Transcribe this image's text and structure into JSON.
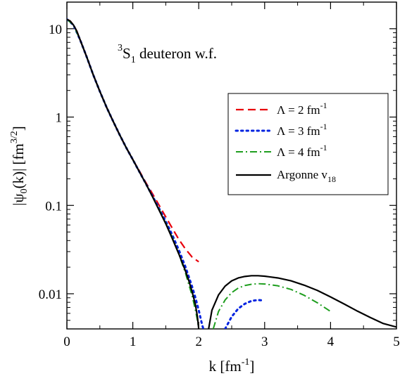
{
  "chart_data": {
    "type": "line",
    "title": "",
    "annotation": {
      "sup": "3",
      "main": "S",
      "sub": "1",
      "rest": " deuteron w.f."
    },
    "xlabel": {
      "main": "k [fm",
      "sup": "-1",
      "end": "]"
    },
    "ylabel": {
      "pre": "|ψ",
      "sub": "0",
      "mid": "(k)| [fm",
      "sup": "3/2",
      "end": "]"
    },
    "xlim": [
      0,
      5
    ],
    "ylim": [
      0.004,
      20
    ],
    "yscale": "log",
    "xticks": [
      0,
      1,
      2,
      3,
      4,
      5
    ],
    "xtick_labels": [
      "0",
      "1",
      "2",
      "3",
      "4",
      "5"
    ],
    "yticks": [
      0.01,
      0.1,
      1,
      10
    ],
    "ytick_labels": [
      "0.01",
      "0.1",
      "1",
      "10"
    ],
    "grid": false,
    "legend_position": "right",
    "legend": [
      {
        "main": "Λ = 2 fm",
        "sup": "-1",
        "sub": ""
      },
      {
        "main": "Λ = 3 fm",
        "sup": "-1",
        "sub": ""
      },
      {
        "main": "Λ = 4 fm",
        "sup": "-1",
        "sub": ""
      },
      {
        "main": "Argonne v",
        "sup": "",
        "sub": "18"
      }
    ],
    "series": [
      {
        "name": "Λ = 2 fm-1",
        "color": "#e8000b",
        "dash": "11,6",
        "segments": [
          [
            [
              0,
              12.8
            ],
            [
              0.05,
              12.2
            ],
            [
              0.1,
              11.0
            ],
            [
              0.15,
              9.4
            ],
            [
              0.2,
              7.5
            ],
            [
              0.3,
              4.8
            ],
            [
              0.4,
              3.0
            ],
            [
              0.5,
              1.95
            ],
            [
              0.6,
              1.3
            ],
            [
              0.7,
              0.9
            ],
            [
              0.8,
              0.63
            ],
            [
              0.9,
              0.45
            ],
            [
              1.0,
              0.33
            ],
            [
              1.1,
              0.245
            ],
            [
              1.2,
              0.18
            ],
            [
              1.3,
              0.135
            ],
            [
              1.4,
              0.1
            ],
            [
              1.5,
              0.074
            ],
            [
              1.6,
              0.055
            ],
            [
              1.7,
              0.041
            ],
            [
              1.8,
              0.032
            ],
            [
              1.9,
              0.026
            ],
            [
              2.0,
              0.023
            ]
          ]
        ]
      },
      {
        "name": "Λ = 3 fm-1",
        "color": "#0022e0",
        "dash": "2.5,5",
        "segments": [
          [
            [
              0,
              12.8
            ],
            [
              0.1,
              11.0
            ],
            [
              0.2,
              7.5
            ],
            [
              0.3,
              4.8
            ],
            [
              0.4,
              3.0
            ],
            [
              0.5,
              1.95
            ],
            [
              0.6,
              1.3
            ],
            [
              0.7,
              0.9
            ],
            [
              0.8,
              0.63
            ],
            [
              0.9,
              0.45
            ],
            [
              1.0,
              0.33
            ],
            [
              1.1,
              0.24
            ],
            [
              1.2,
              0.175
            ],
            [
              1.3,
              0.127
            ],
            [
              1.4,
              0.092
            ],
            [
              1.5,
              0.066
            ],
            [
              1.6,
              0.046
            ],
            [
              1.7,
              0.031
            ],
            [
              1.8,
              0.02
            ],
            [
              1.9,
              0.012
            ],
            [
              1.95,
              0.009
            ],
            [
              2.0,
              0.0065
            ],
            [
              2.05,
              0.0045
            ],
            [
              2.07,
              0.004
            ]
          ],
          [
            [
              2.4,
              0.004
            ],
            [
              2.5,
              0.0055
            ],
            [
              2.6,
              0.0068
            ],
            [
              2.7,
              0.0077
            ],
            [
              2.8,
              0.0083
            ],
            [
              2.9,
              0.0085
            ],
            [
              2.98,
              0.0084
            ]
          ]
        ]
      },
      {
        "name": "Λ = 4 fm-1",
        "color": "#1e9e1e",
        "dash": "10,4,2,4",
        "segments": [
          [
            [
              0,
              12.8
            ],
            [
              0.1,
              11.0
            ],
            [
              0.2,
              7.5
            ],
            [
              0.3,
              4.8
            ],
            [
              0.4,
              3.0
            ],
            [
              0.5,
              1.95
            ],
            [
              0.6,
              1.3
            ],
            [
              0.7,
              0.9
            ],
            [
              0.8,
              0.63
            ],
            [
              0.9,
              0.45
            ],
            [
              1.0,
              0.33
            ],
            [
              1.1,
              0.24
            ],
            [
              1.2,
              0.175
            ],
            [
              1.3,
              0.125
            ],
            [
              1.4,
              0.09
            ],
            [
              1.5,
              0.063
            ],
            [
              1.6,
              0.043
            ],
            [
              1.7,
              0.028
            ],
            [
              1.8,
              0.017
            ],
            [
              1.9,
              0.0095
            ],
            [
              1.95,
              0.0065
            ],
            [
              1.98,
              0.005
            ],
            [
              2.0,
              0.004
            ]
          ],
          [
            [
              2.22,
              0.004
            ],
            [
              2.3,
              0.0063
            ],
            [
              2.4,
              0.0085
            ],
            [
              2.5,
              0.0103
            ],
            [
              2.6,
              0.0116
            ],
            [
              2.7,
              0.0124
            ],
            [
              2.8,
              0.0128
            ],
            [
              2.9,
              0.013
            ],
            [
              3.0,
              0.0129
            ],
            [
              3.2,
              0.0123
            ],
            [
              3.4,
              0.0112
            ],
            [
              3.6,
              0.0096
            ],
            [
              3.8,
              0.0079
            ],
            [
              4.0,
              0.0063
            ]
          ]
        ]
      },
      {
        "name": "Argonne v18",
        "color": "#000000",
        "dash": "",
        "segments": [
          [
            [
              0,
              12.8
            ],
            [
              0.05,
              12.2
            ],
            [
              0.1,
              11.0
            ],
            [
              0.15,
              9.4
            ],
            [
              0.2,
              7.5
            ],
            [
              0.3,
              4.8
            ],
            [
              0.4,
              3.0
            ],
            [
              0.5,
              1.95
            ],
            [
              0.6,
              1.3
            ],
            [
              0.7,
              0.9
            ],
            [
              0.8,
              0.63
            ],
            [
              0.9,
              0.45
            ],
            [
              1.0,
              0.33
            ],
            [
              1.1,
              0.24
            ],
            [
              1.2,
              0.175
            ],
            [
              1.3,
              0.125
            ],
            [
              1.4,
              0.088
            ],
            [
              1.5,
              0.062
            ],
            [
              1.6,
              0.042
            ],
            [
              1.7,
              0.028
            ],
            [
              1.8,
              0.018
            ],
            [
              1.85,
              0.014
            ],
            [
              1.9,
              0.0105
            ],
            [
              1.95,
              0.0075
            ],
            [
              1.98,
              0.0055
            ],
            [
              2.0,
              0.004
            ]
          ],
          [
            [
              2.15,
              0.004
            ],
            [
              2.2,
              0.0065
            ],
            [
              2.3,
              0.0097
            ],
            [
              2.4,
              0.0122
            ],
            [
              2.5,
              0.014
            ],
            [
              2.6,
              0.0151
            ],
            [
              2.7,
              0.0157
            ],
            [
              2.8,
              0.016
            ],
            [
              2.9,
              0.016
            ],
            [
              3.0,
              0.0158
            ],
            [
              3.2,
              0.0151
            ],
            [
              3.4,
              0.014
            ],
            [
              3.6,
              0.0125
            ],
            [
              3.8,
              0.0109
            ],
            [
              4.0,
              0.0092
            ],
            [
              4.2,
              0.0077
            ],
            [
              4.4,
              0.0064
            ],
            [
              4.6,
              0.0054
            ],
            [
              4.8,
              0.0046
            ],
            [
              5.0,
              0.0042
            ]
          ]
        ]
      }
    ]
  }
}
